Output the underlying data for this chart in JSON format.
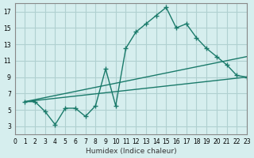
{
  "xlabel": "Humidex (Indice chaleur)",
  "ylabel": "",
  "bg_color": "#d6eeee",
  "grid_color": "#b0d0d0",
  "line_color": "#1a7a6a",
  "xlim": [
    0,
    23
  ],
  "ylim": [
    2,
    18
  ],
  "xticks": [
    0,
    1,
    2,
    3,
    4,
    5,
    6,
    7,
    8,
    9,
    10,
    11,
    12,
    13,
    14,
    15,
    16,
    17,
    18,
    19,
    20,
    21,
    22,
    23
  ],
  "yticks": [
    3,
    5,
    7,
    9,
    11,
    13,
    15,
    17
  ],
  "line1_x": [
    1,
    2,
    3,
    4,
    5,
    6,
    7,
    8,
    9,
    10,
    11,
    12,
    13,
    14,
    15,
    16,
    17,
    18,
    19,
    20,
    21,
    22,
    23
  ],
  "line1_y": [
    6,
    6,
    4.8,
    3.2,
    5.2,
    5.2,
    4.2,
    5.5,
    10,
    5.5,
    12.5,
    14.5,
    15.5,
    16.5,
    17.5,
    15,
    15.5,
    13.8,
    12.5,
    11.5,
    10.5,
    9.2,
    9.0
  ],
  "line2_x": [
    1,
    23
  ],
  "line2_y": [
    6,
    9.0
  ],
  "line3_x": [
    1,
    23
  ],
  "line3_y": [
    6,
    11.5
  ],
  "marker": "+"
}
